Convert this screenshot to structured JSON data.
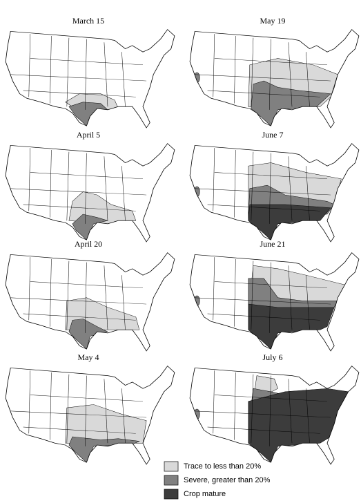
{
  "maps": [
    {
      "label": "March 15"
    },
    {
      "label": "April 5"
    },
    {
      "label": "April 20"
    },
    {
      "label": "May 4"
    },
    {
      "label": "May 19"
    },
    {
      "label": "June 7"
    },
    {
      "label": "June 21"
    },
    {
      "label": "July 6"
    }
  ],
  "legend": [
    {
      "label": "Trace to less than 20%",
      "color": "#d9d9d9"
    },
    {
      "label": "Severe, greater than 20%",
      "color": "#808080"
    },
    {
      "label": "Crop mature",
      "color": "#3c3c3c"
    }
  ]
}
